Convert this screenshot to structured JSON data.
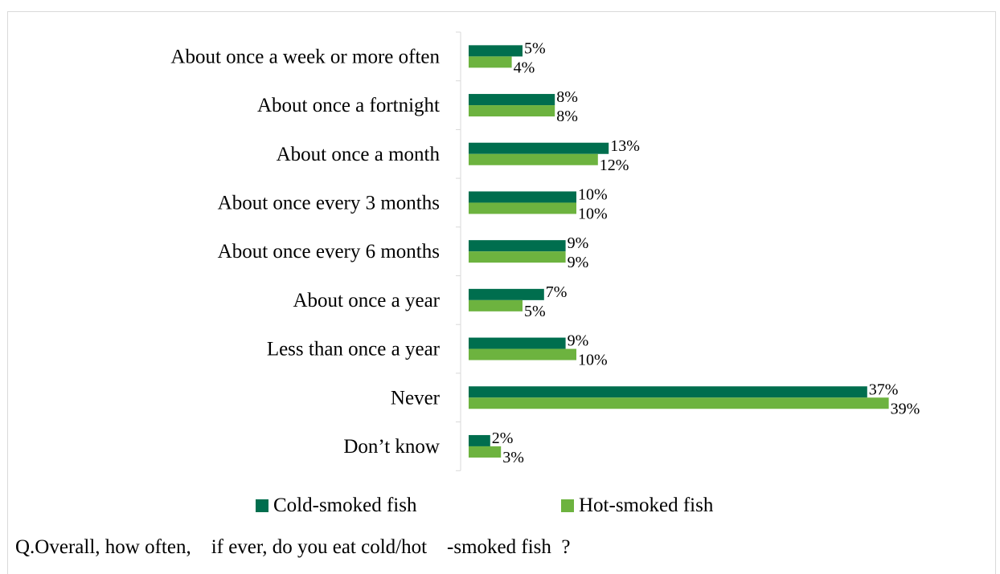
{
  "chart_data": {
    "type": "bar",
    "orientation": "horizontal",
    "categories": [
      "About once a week or more often",
      "About once a fortnight",
      "About once a month",
      "About once every 3 months",
      "About once every 6 months",
      "About once a year",
      "Less than once a year",
      "Never",
      "Don’t know"
    ],
    "series": [
      {
        "name": "Cold-smoked fish",
        "color": "#006e4e",
        "values": [
          5,
          8,
          13,
          10,
          9,
          7,
          9,
          37,
          2
        ],
        "labels": [
          "5%",
          "8%",
          "13%",
          "10%",
          "9%",
          "7%",
          "9%",
          "37%",
          "2%"
        ]
      },
      {
        "name": "Hot-smoked fish",
        "color": "#6db33f",
        "values": [
          4,
          8,
          12,
          10,
          9,
          5,
          10,
          39,
          3
        ],
        "labels": [
          "4%",
          "8%",
          "12%",
          "10%",
          "9%",
          "5%",
          "10%",
          "39%",
          "3%"
        ]
      }
    ],
    "xlim": [
      0,
      40
    ],
    "grid": false,
    "legend_position": "bottom"
  },
  "caption": "Q.Overall, how often,    if ever, do you eat cold/hot    -smoked fish  ?"
}
